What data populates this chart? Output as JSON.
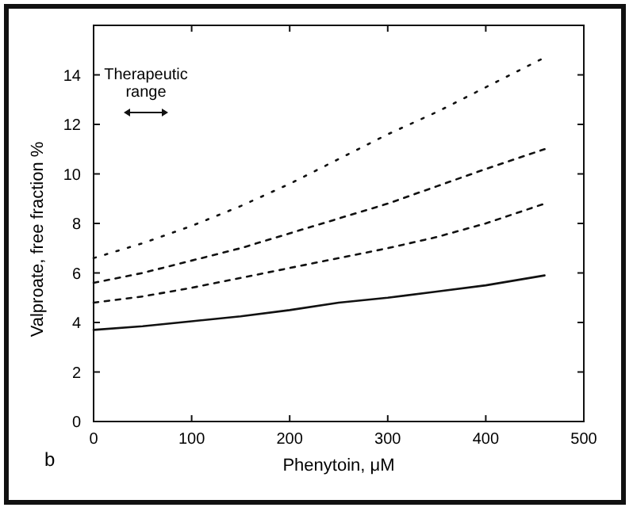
{
  "chart_data": {
    "type": "line",
    "xlabel": "Phenytoin, μM",
    "ylabel": "Valproate, free fraction %",
    "x": [
      0,
      50,
      100,
      150,
      200,
      250,
      300,
      350,
      400,
      460
    ],
    "series": [
      {
        "color": "#111111",
        "line_style": "solid",
        "values": [
          3.7,
          3.85,
          4.05,
          4.25,
          4.5,
          4.8,
          5.0,
          5.25,
          5.5,
          5.9
        ]
      },
      {
        "color": "#111111",
        "line_style": "dashed",
        "values": [
          4.8,
          5.05,
          5.4,
          5.8,
          6.2,
          6.6,
          7.0,
          7.45,
          8.0,
          8.8
        ]
      },
      {
        "color": "#111111",
        "line_style": "dashed",
        "values": [
          5.6,
          6.0,
          6.5,
          7.0,
          7.6,
          8.2,
          8.8,
          9.5,
          10.2,
          11.0
        ]
      },
      {
        "color": "#111111",
        "line_style": "dotted",
        "values": [
          6.6,
          7.2,
          7.9,
          8.7,
          9.6,
          10.6,
          11.6,
          12.5,
          13.5,
          14.7
        ]
      }
    ],
    "xlim": [
      0,
      500
    ],
    "xticks": [
      0,
      100,
      200,
      300,
      400,
      500
    ],
    "ylim": [
      0,
      16
    ],
    "yticks": [
      0,
      2,
      4,
      6,
      8,
      10,
      12,
      14
    ],
    "grid": false,
    "marker": "none",
    "annotations": [
      "Therapeutic range",
      "b"
    ]
  }
}
